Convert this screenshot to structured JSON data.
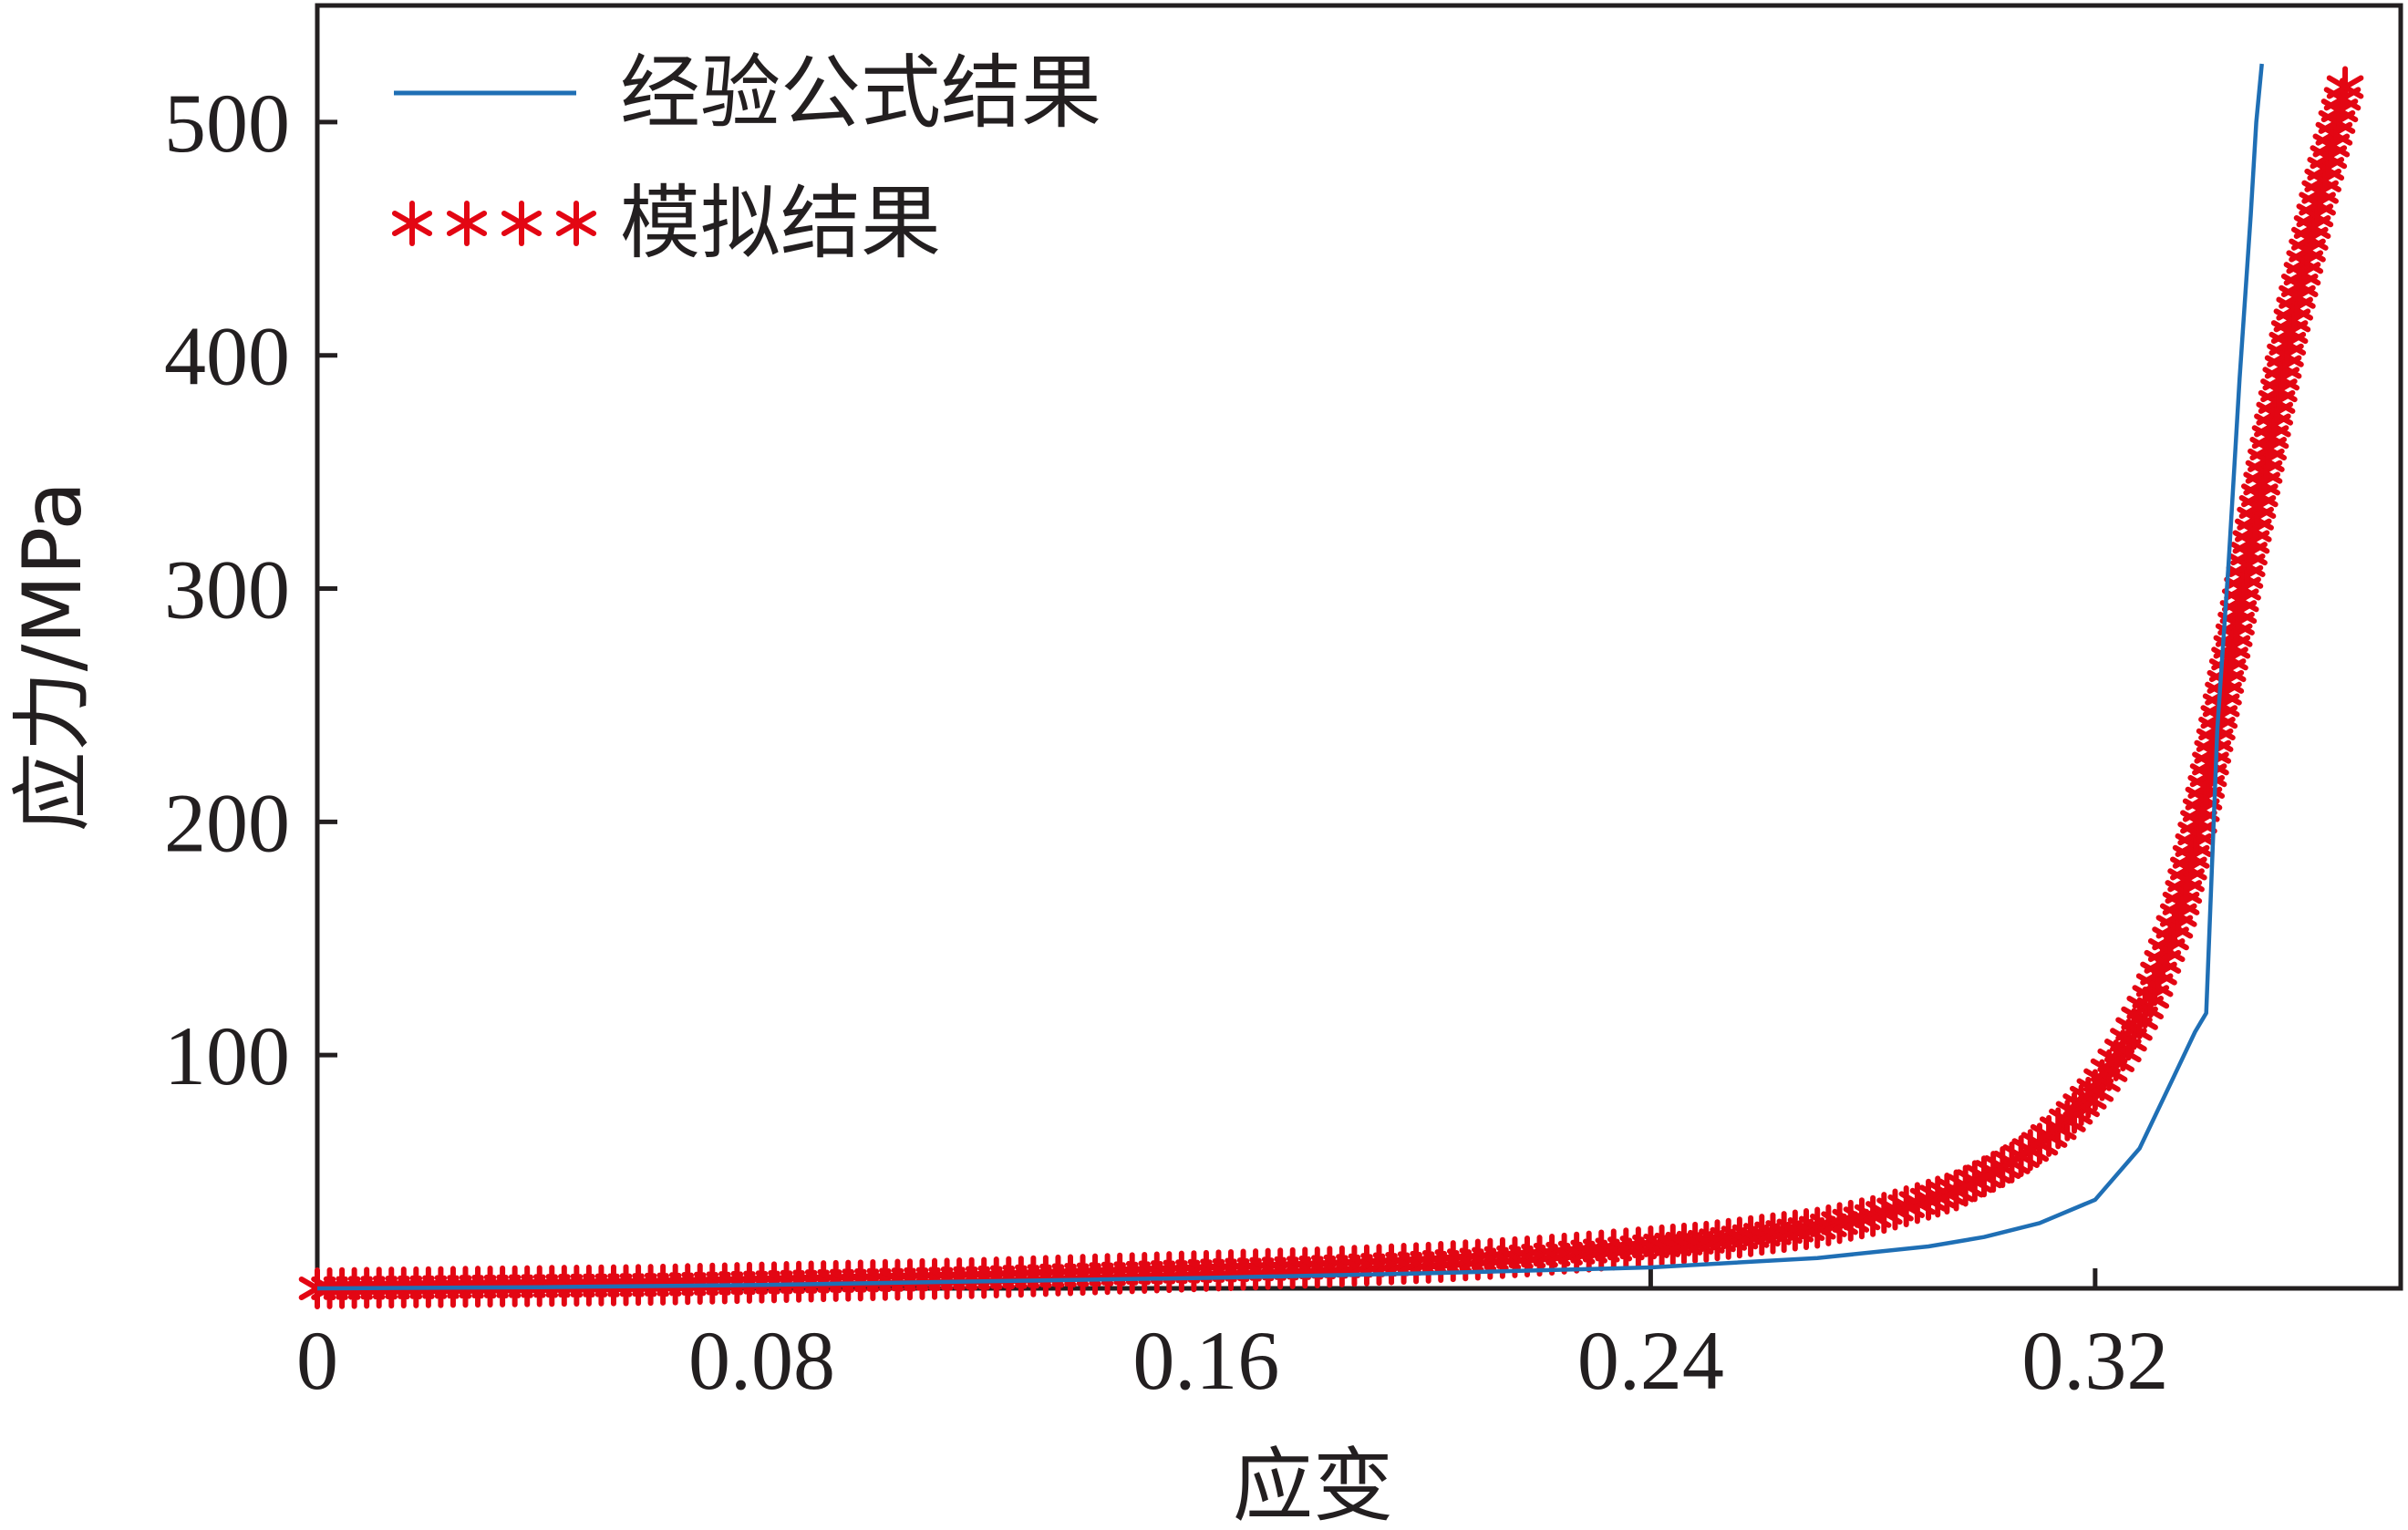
{
  "chart_data": {
    "type": "line",
    "title": "",
    "xlabel": "应变",
    "ylabel": "应力/MPa",
    "xlim": [
      0,
      0.375
    ],
    "ylim": [
      0,
      550
    ],
    "x_ticks": [
      0,
      0.08,
      0.16,
      0.24,
      0.32
    ],
    "x_tick_labels": [
      "0",
      "0.08",
      "0.16",
      "0.24",
      "0.32"
    ],
    "y_ticks": [
      100,
      200,
      300,
      400,
      500
    ],
    "y_tick_labels": [
      "100",
      "200",
      "300",
      "400",
      "500"
    ],
    "grid": false,
    "legend_position": "top-left",
    "series": [
      {
        "name": "经验公式结果",
        "color": "#1f6fb5",
        "style": "line",
        "x": [
          0,
          0.04,
          0.08,
          0.12,
          0.16,
          0.2,
          0.24,
          0.27,
          0.29,
          0.3,
          0.31,
          0.32,
          0.328,
          0.334,
          0.338,
          0.34,
          0.342,
          0.344,
          0.346,
          0.348,
          0.349,
          0.35
        ],
        "y": [
          0,
          0.5,
          1.5,
          3,
          4.5,
          6.5,
          9,
          13,
          18,
          22,
          28,
          38,
          60,
          90,
          110,
          118,
          240,
          310,
          390,
          460,
          500,
          525
        ]
      },
      {
        "name": "模拟结果",
        "color": "#e30613",
        "style": "markers",
        "x": [
          0,
          0.02,
          0.04,
          0.06,
          0.08,
          0.1,
          0.12,
          0.14,
          0.16,
          0.18,
          0.2,
          0.22,
          0.24,
          0.25,
          0.26,
          0.27,
          0.28,
          0.29,
          0.295,
          0.3,
          0.305,
          0.31,
          0.315,
          0.32,
          0.325,
          0.33,
          0.335,
          0.34,
          0.345,
          0.35,
          0.355,
          0.36,
          0.363,
          0.365
        ],
        "y": [
          0,
          0.5,
          1,
          1.5,
          2.5,
          3.5,
          4.5,
          6,
          7.5,
          9,
          11,
          14,
          18,
          20,
          23,
          26,
          31,
          38,
          42,
          48,
          54,
          62,
          72,
          85,
          102,
          125,
          160,
          215,
          280,
          345,
          410,
          465,
          495,
          515
        ]
      }
    ]
  }
}
